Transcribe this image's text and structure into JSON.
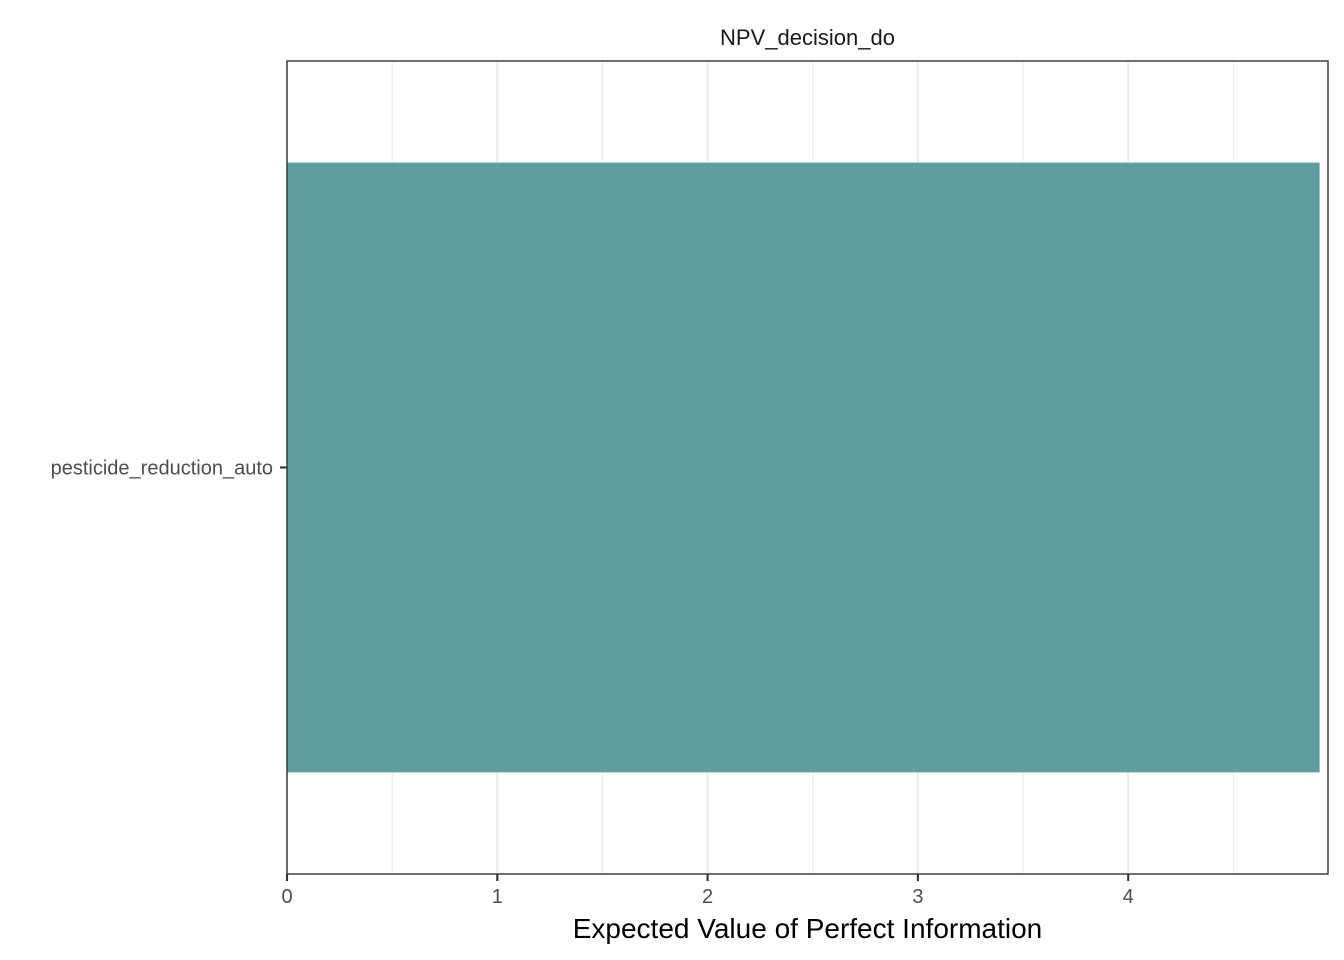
{
  "chart_data": {
    "type": "bar",
    "orientation": "horizontal",
    "facet_title": "NPV_decision_do",
    "categories": [
      "pesticide_reduction_auto"
    ],
    "values": [
      4.91
    ],
    "xlabel": "Expected Value of Perfect Information",
    "ylabel": "",
    "xlim": [
      0,
      4.95
    ],
    "x_ticks": [
      0,
      1,
      2,
      3,
      4
    ],
    "bar_color": "#5f9ea0",
    "grid": true
  }
}
